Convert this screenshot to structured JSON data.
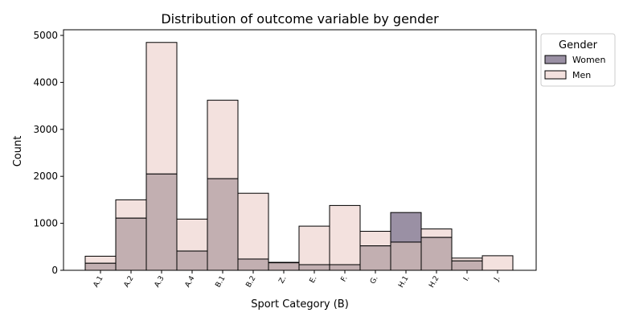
{
  "chart_data": {
    "type": "bar",
    "title": "Distribution of outcome variable by gender",
    "xlabel": "Sport Category (B)",
    "ylabel": "Count",
    "ylim": [
      0,
      5100
    ],
    "yticks": [
      0,
      1000,
      2000,
      3000,
      4000,
      5000
    ],
    "categories": [
      "A.1",
      "A.2",
      "A.3",
      "A.4",
      "B.1",
      "B.2",
      "Z.",
      "E.",
      "F.",
      "G.",
      "H.1",
      "H.2",
      "I.",
      "J."
    ],
    "series": [
      {
        "name": "Women",
        "color": "#9a90a4",
        "values": [
          150,
          1110,
          2050,
          410,
          1950,
          240,
          160,
          120,
          120,
          520,
          1230,
          700,
          200,
          0
        ]
      },
      {
        "name": "Men",
        "color": "#f3e1de",
        "values": [
          300,
          1500,
          4850,
          1090,
          3620,
          1640,
          170,
          940,
          1380,
          830,
          600,
          880,
          260,
          310
        ]
      }
    ],
    "overlap_color": "#c2afb1",
    "grid": false,
    "legend": {
      "title": "Gender",
      "position": "outside-right-top"
    }
  }
}
